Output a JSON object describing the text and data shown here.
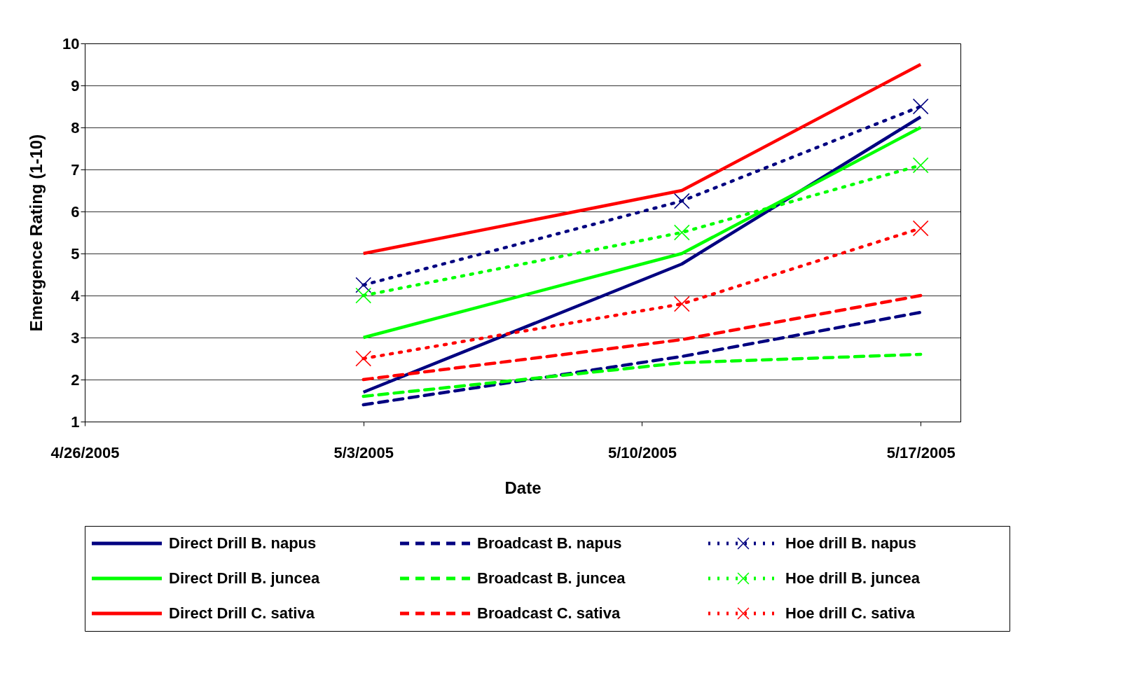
{
  "chart_data": {
    "type": "line",
    "xlabel": "Date",
    "ylabel": "Emergence Rating (1-10)",
    "x": [
      "2005-05-03",
      "2005-05-11",
      "2005-05-17"
    ],
    "series": [
      {
        "name": "Direct Drill B. napus",
        "color": "#000080",
        "line_style": "solid",
        "marker": "none",
        "values": [
          1.7,
          4.75,
          8.25
        ]
      },
      {
        "name": "Broadcast B. napus",
        "color": "#000080",
        "line_style": "dashed",
        "marker": "none",
        "values": [
          1.4,
          2.55,
          3.6
        ]
      },
      {
        "name": "Hoe drill B. napus",
        "color": "#000080",
        "line_style": "dotted",
        "marker": "cross",
        "values": [
          4.25,
          6.25,
          8.5
        ]
      },
      {
        "name": "Direct Drill B. juncea",
        "color": "#00ff00",
        "line_style": "solid",
        "marker": "none",
        "values": [
          3.0,
          5.0,
          8.0
        ]
      },
      {
        "name": "Broadcast B. juncea",
        "color": "#00ff00",
        "line_style": "dashed",
        "marker": "none",
        "values": [
          1.6,
          2.4,
          2.6
        ]
      },
      {
        "name": "Hoe drill B. juncea",
        "color": "#00ff00",
        "line_style": "dotted",
        "marker": "cross",
        "values": [
          4.0,
          5.5,
          7.1
        ]
      },
      {
        "name": "Direct Drill C. sativa",
        "color": "#ff0000",
        "line_style": "solid",
        "marker": "none",
        "values": [
          5.0,
          6.5,
          9.5
        ]
      },
      {
        "name": "Broadcast C. sativa",
        "color": "#ff0000",
        "line_style": "dashed",
        "marker": "none",
        "values": [
          2.0,
          2.95,
          4.0
        ]
      },
      {
        "name": "Hoe drill C. sativa",
        "color": "#ff0000",
        "line_style": "dotted",
        "marker": "cross",
        "values": [
          2.5,
          3.8,
          5.6
        ]
      }
    ],
    "xlim": [
      "2005-04-26",
      "2005-05-18"
    ],
    "xticks": [
      {
        "value": "2005-04-26",
        "label": "4/26/2005"
      },
      {
        "value": "2005-05-03",
        "label": "5/3/2005"
      },
      {
        "value": "2005-05-10",
        "label": "5/10/2005"
      },
      {
        "value": "2005-05-17",
        "label": "5/17/2005"
      }
    ],
    "ylim": [
      1,
      10
    ],
    "yticks": [
      1,
      2,
      3,
      4,
      5,
      6,
      7,
      8,
      9,
      10
    ],
    "grid": "y",
    "legend": "bottom"
  }
}
